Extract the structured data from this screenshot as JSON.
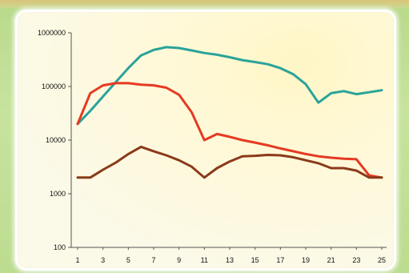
{
  "chart_data": {
    "type": "line",
    "yscale": "log",
    "ylim": [
      100,
      1000000
    ],
    "yticks": [
      100,
      1000,
      10000,
      100000,
      1000000
    ],
    "ytick_labels": [
      "100",
      "1000",
      "10000",
      "100000",
      "1000000"
    ],
    "xlim": [
      1,
      25
    ],
    "xticks": [
      1,
      3,
      5,
      7,
      9,
      11,
      13,
      15,
      17,
      19,
      21,
      23,
      25
    ],
    "xtick_labels": [
      "1",
      "3",
      "5",
      "7",
      "9",
      "11",
      "13",
      "15",
      "17",
      "19",
      "21",
      "23",
      "25"
    ],
    "x": [
      1,
      2,
      3,
      4,
      5,
      6,
      7,
      8,
      9,
      10,
      11,
      12,
      13,
      14,
      15,
      16,
      17,
      18,
      19,
      20,
      21,
      22,
      23,
      24,
      25
    ],
    "series": [
      {
        "color": "#2aa39a",
        "values": [
          20000,
          35000,
          65000,
          120000,
          220000,
          380000,
          480000,
          540000,
          520000,
          470000,
          420000,
          390000,
          350000,
          310000,
          285000,
          260000,
          220000,
          170000,
          110000,
          50000,
          75000,
          82000,
          72000,
          78000,
          85000
        ]
      },
      {
        "color": "#e53a22",
        "values": [
          20000,
          75000,
          105000,
          115000,
          115000,
          108000,
          105000,
          95000,
          70000,
          33000,
          10000,
          13000,
          11500,
          10000,
          9000,
          8000,
          7000,
          6200,
          5500,
          5000,
          4700,
          4500,
          4400,
          2200,
          2000
        ]
      },
      {
        "color": "#8a3a1a",
        "values": [
          2000,
          2000,
          2800,
          3800,
          5500,
          7500,
          6200,
          5200,
          4200,
          3200,
          2000,
          3000,
          4000,
          5000,
          5100,
          5300,
          5200,
          4800,
          4200,
          3700,
          3000,
          3000,
          2700,
          2000,
          2000
        ]
      }
    ],
    "grid": false,
    "legend": "none"
  }
}
